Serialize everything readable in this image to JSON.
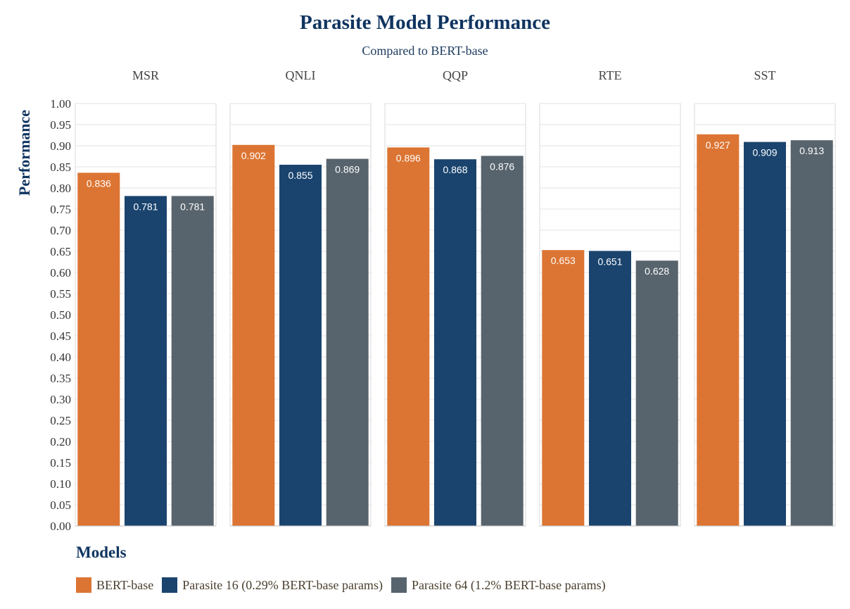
{
  "chart_data": {
    "type": "bar",
    "title": "Parasite Model Performance",
    "subtitle": "Compared to BERT-base",
    "ylabel": "Performance",
    "xlabel": "",
    "ylim": [
      0,
      1.0
    ],
    "y_ticks": [
      "0.00",
      "0.05",
      "0.10",
      "0.15",
      "0.20",
      "0.25",
      "0.30",
      "0.35",
      "0.40",
      "0.45",
      "0.50",
      "0.55",
      "0.60",
      "0.65",
      "0.70",
      "0.75",
      "0.80",
      "0.85",
      "0.90",
      "0.95",
      "1.00"
    ],
    "facets": [
      "MSR",
      "QNLI",
      "QQP",
      "RTE",
      "SST"
    ],
    "series": [
      {
        "name": "BERT-base",
        "color": "#dc7533",
        "values": [
          0.836,
          0.902,
          0.896,
          0.653,
          0.927
        ],
        "labels": [
          "0.836",
          "0.902",
          "0.896",
          "0.653",
          "0.927"
        ]
      },
      {
        "name": "Parasite 16 (0.29% BERT-base params)",
        "color": "#1a446e",
        "values": [
          0.781,
          0.855,
          0.868,
          0.651,
          0.909
        ],
        "labels": [
          "0.781",
          "0.855",
          "0.868",
          "0.651",
          "0.909"
        ]
      },
      {
        "name": "Parasite 64 (1.2% BERT-base params)",
        "color": "#58646d",
        "values": [
          0.781,
          0.869,
          0.876,
          0.628,
          0.913
        ],
        "labels": [
          "0.781",
          "0.869",
          "0.876",
          "0.628",
          "0.913"
        ]
      }
    ],
    "grid": true,
    "legend_title": "Models",
    "legend_position": "bottom-left"
  }
}
